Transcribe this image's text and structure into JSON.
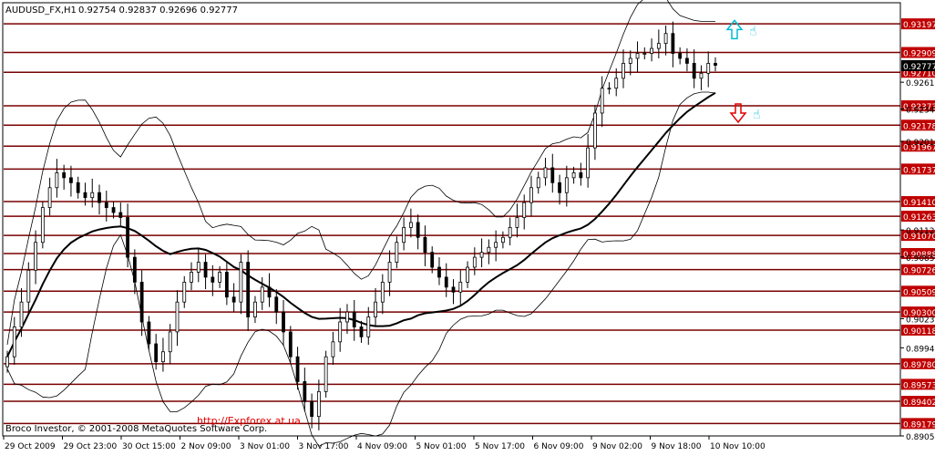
{
  "window": {
    "symbol_label": "AUDUSD_FX,H1",
    "ohlc_text": "0.92754 0.92837 0.92696 0.92777",
    "copyright": "Broco Investor, © 2001-2008 MetaQuotes Software Corp.",
    "watermark": "http://Expforex.at.ua"
  },
  "colors": {
    "background": "#ffffff",
    "candle": "#000000",
    "level_line": "#7a0000",
    "level_label_bg": "#c00000",
    "current_label_bg": "#000000",
    "up_arrow": "#00bcd4",
    "down_arrow": "#e00000",
    "watermark": "#e00000"
  },
  "chart_data": {
    "type": "candlestick",
    "symbol": "AUDUSD_FX",
    "timeframe": "H1",
    "ylim": [
      0.89054,
      0.934
    ],
    "x_ticks": [
      "29 Oct 2009",
      "29 Oct 23:00",
      "30 Oct 15:00",
      "2 Nov 09:00",
      "3 Nov 01:00",
      "3 Nov 17:00",
      "4 Nov 09:00",
      "5 Nov 01:00",
      "5 Nov 17:00",
      "6 Nov 09:00",
      "9 Nov 02:00",
      "9 Nov 18:00",
      "10 Nov 10:00"
    ],
    "y_ticks": [
      0.9261,
      0.9234,
      0.92015,
      0.91125,
      0.90853,
      0.90233,
      0.8994,
      0.89054
    ],
    "levels": [
      0.93197,
      0.92909,
      0.9271,
      0.92373,
      0.92178,
      0.91967,
      0.91737,
      0.9141,
      0.91263,
      0.9107,
      0.90888,
      0.90726,
      0.90509,
      0.903,
      0.90118,
      0.8978,
      0.89573,
      0.89402,
      0.89179
    ],
    "current_price": 0.92777,
    "closes": [
      0.8985,
      0.9015,
      0.904,
      0.9072,
      0.91,
      0.9135,
      0.9155,
      0.917,
      0.9165,
      0.916,
      0.915,
      0.9145,
      0.915,
      0.914,
      0.9135,
      0.913,
      0.9125,
      0.9085,
      0.906,
      0.902,
      0.8998,
      0.898,
      0.899,
      0.901,
      0.904,
      0.906,
      0.907,
      0.908,
      0.9065,
      0.906,
      0.907,
      0.9045,
      0.904,
      0.908,
      0.9025,
      0.904,
      0.9055,
      0.9045,
      0.903,
      0.901,
      0.8985,
      0.896,
      0.894,
      0.8925,
      0.895,
      0.8985,
      0.9,
      0.902,
      0.903,
      0.9015,
      0.9005,
      0.9025,
      0.904,
      0.906,
      0.908,
      0.91,
      0.9115,
      0.912,
      0.9105,
      0.909,
      0.9075,
      0.9065,
      0.9055,
      0.905,
      0.906,
      0.9075,
      0.9085,
      0.909,
      0.9095,
      0.91,
      0.9105,
      0.9115,
      0.9125,
      0.914,
      0.9155,
      0.9165,
      0.9175,
      0.916,
      0.915,
      0.9165,
      0.917,
      0.9165,
      0.9195,
      0.923,
      0.9255,
      0.9255,
      0.9265,
      0.928,
      0.9285,
      0.929,
      0.929,
      0.9295,
      0.93,
      0.931,
      0.929,
      0.9285,
      0.928,
      0.9265,
      0.927,
      0.928,
      0.9278
    ]
  },
  "signals": {
    "up": {
      "arrow": "up-arrow-icon",
      "hand": "pointing-hand-icon"
    },
    "down": {
      "arrow": "down-arrow-icon",
      "hand": "pointing-hand-icon"
    }
  }
}
